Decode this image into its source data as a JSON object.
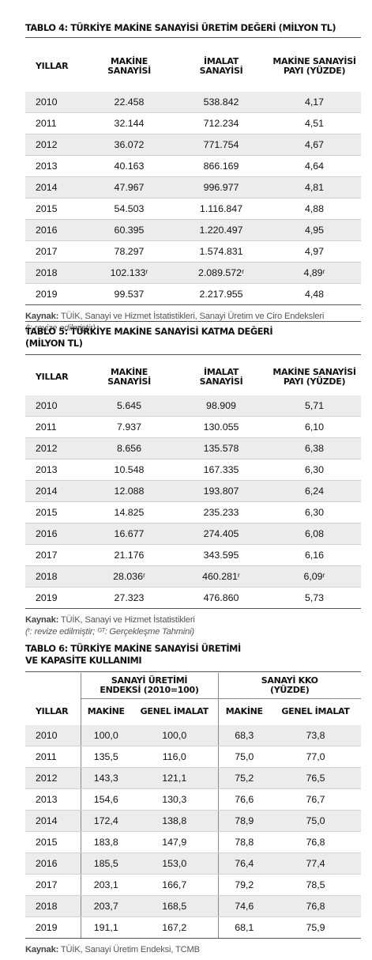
{
  "table4": {
    "title": "TABLO 4: TÜRKİYE MAKİNE SANAYİSİ ÜRETİM DEĞERİ (MİLYON TL)",
    "headers": [
      "YILLAR",
      "MAKİNE SANAYİSİ",
      "İMALAT SANAYİSİ",
      "MAKİNE SANAYİSİ PAYI (YÜZDE)"
    ],
    "rows": [
      [
        "2010",
        "22.458",
        "538.842",
        "4,17"
      ],
      [
        "2011",
        "32.144",
        "712.234",
        "4,51"
      ],
      [
        "2012",
        "36.072",
        "771.754",
        "4,67"
      ],
      [
        "2013",
        "40.163",
        "866.169",
        "4,64"
      ],
      [
        "2014",
        "47.967",
        "996.977",
        "4,81"
      ],
      [
        "2015",
        "54.503",
        "1.116.847",
        "4,88"
      ],
      [
        "2016",
        "60.395",
        "1.220.497",
        "4,95"
      ],
      [
        "2017",
        "78.297",
        "1.574.831",
        "4,97"
      ],
      [
        "2018",
        "102.133ʳ",
        "2.089.572ʳ",
        "4,89ʳ"
      ],
      [
        "2019",
        "99.537",
        "2.217.955",
        "4,48"
      ]
    ],
    "source_label": "Kaynak:",
    "source_text": "TÜİK, Sanayi ve Hizmet İstatistikleri, Sanayi Üretim ve Ciro Endeksleri",
    "footnote": "(ʳ: revize edilmiştir)"
  },
  "table5": {
    "title_line1": "TABLO 5: TÜRKİYE MAKİNE SANAYİSİ KATMA DEĞERİ",
    "title_line2": "(MİLYON TL)",
    "headers": [
      "YILLAR",
      "MAKİNE SANAYİSİ",
      "İMALAT SANAYİSİ",
      "MAKİNE SANAYİSİ PAYI (YÜZDE)"
    ],
    "rows": [
      [
        "2010",
        "5.645",
        "98.909",
        "5,71"
      ],
      [
        "2011",
        "7.937",
        "130.055",
        "6,10"
      ],
      [
        "2012",
        "8.656",
        "135.578",
        "6,38"
      ],
      [
        "2013",
        "10.548",
        "167.335",
        "6,30"
      ],
      [
        "2014",
        "12.088",
        "193.807",
        "6,24"
      ],
      [
        "2015",
        "14.825",
        "235.233",
        "6,30"
      ],
      [
        "2016",
        "16.677",
        "274.405",
        "6,08"
      ],
      [
        "2017",
        "21.176",
        "343.595",
        "6,16"
      ],
      [
        "2018",
        "28.036ʳ",
        "460.281ʳ",
        "6,09ʳ"
      ],
      [
        "2019",
        "27.323",
        "476.860",
        "5,73"
      ]
    ],
    "source_label": "Kaynak:",
    "source_text": "TÜİK, Sanayi ve Hizmet İstatistikleri",
    "footnote": "(ʳ: revize edilmiştir; ᴳᵀ: Gerçekleşme Tahmini)"
  },
  "table6": {
    "title_line1": "TABLO 6: TÜRKİYE MAKİNE SANAYİSİ ÜRETİMİ",
    "title_line2": "VE KAPASİTE KULLANIMI",
    "group1": "SANAYİ ÜRETİMİ ENDEKSİ (2010=100)",
    "group2": "SANAYİ KKO (YÜZDE)",
    "headers": [
      "YILLAR",
      "MAKİNE",
      "GENEL İMALAT",
      "MAKİNE",
      "GENEL İMALAT"
    ],
    "rows": [
      [
        "2010",
        "100,0",
        "100,0",
        "68,3",
        "73,8"
      ],
      [
        "2011",
        "135,5",
        "116,0",
        "75,0",
        "77,0"
      ],
      [
        "2012",
        "143,3",
        "121,1",
        "75,2",
        "76,5"
      ],
      [
        "2013",
        "154,6",
        "130,3",
        "76,6",
        "76,7"
      ],
      [
        "2014",
        "172,4",
        "138,8",
        "78,9",
        "75,0"
      ],
      [
        "2015",
        "183,8",
        "147,9",
        "78,8",
        "76,8"
      ],
      [
        "2016",
        "185,5",
        "153,0",
        "76,4",
        "77,4"
      ],
      [
        "2017",
        "203,1",
        "166,7",
        "79,2",
        "78,5"
      ],
      [
        "2018",
        "203,7",
        "168,5",
        "74,6",
        "76,8"
      ],
      [
        "2019",
        "191,1",
        "167,2",
        "68,1",
        "75,9"
      ]
    ],
    "source_label": "Kaynak:",
    "source_text": "TÜİK, Sanayi Üretim Endeksi, TCMB"
  }
}
